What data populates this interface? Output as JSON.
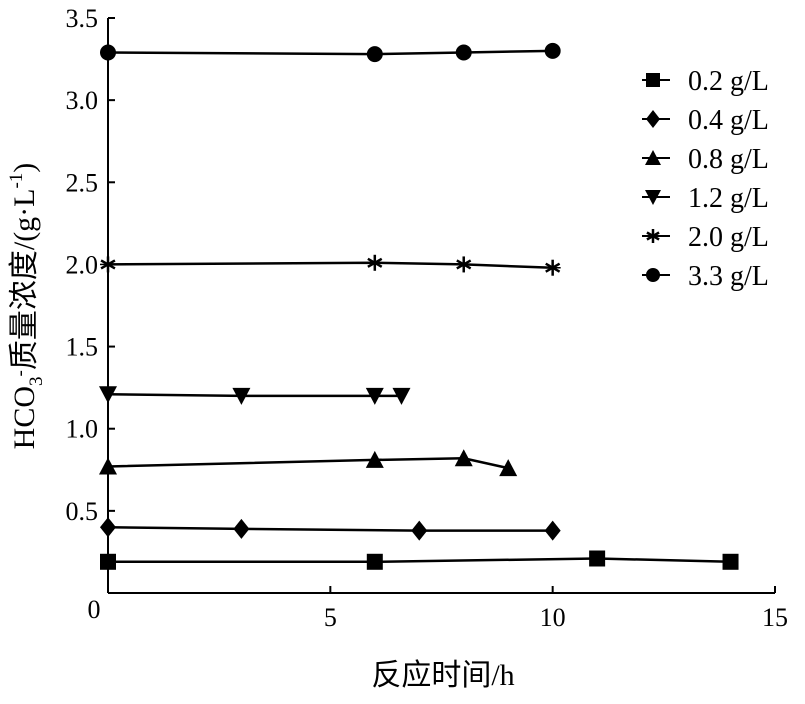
{
  "chart_data": {
    "type": "line",
    "xlabel": "反应时间/h",
    "ylabel": {
      "prefix": "HCO",
      "sub": "3",
      "sup": "-",
      "main": "质量浓度/(g·L",
      "unit_sup": "-1",
      "suffix": ")"
    },
    "xlim": [
      0,
      15
    ],
    "ylim": [
      0,
      3.5
    ],
    "x_ticks": [
      0,
      5,
      10,
      15
    ],
    "x_tick_labels": [
      "0",
      "5",
      "10",
      "15"
    ],
    "y_ticks": [
      0.5,
      1.0,
      1.5,
      2.0,
      2.5,
      3.0,
      3.5
    ],
    "y_tick_labels": [
      "0.5",
      "1.0",
      "1.5",
      "2.0",
      "2.5",
      "3.0",
      "3.5"
    ],
    "origin_label": "0",
    "grid": false,
    "legend_position": "top-right",
    "series": [
      {
        "name": "0.2 g/L",
        "marker": "square",
        "x": [
          0,
          6,
          11,
          14
        ],
        "y": [
          0.19,
          0.19,
          0.21,
          0.19
        ]
      },
      {
        "name": "0.4 g/L",
        "marker": "diamond",
        "x": [
          0,
          3,
          7,
          10
        ],
        "y": [
          0.4,
          0.39,
          0.38,
          0.38
        ]
      },
      {
        "name": "0.8 g/L",
        "marker": "triangle-up",
        "x": [
          0,
          6,
          8,
          9
        ],
        "y": [
          0.77,
          0.81,
          0.82,
          0.76
        ]
      },
      {
        "name": "1.2 g/L",
        "marker": "triangle-down",
        "x": [
          0,
          3,
          6,
          6.6
        ],
        "y": [
          1.21,
          1.2,
          1.2,
          1.2
        ]
      },
      {
        "name": "2.0 g/L",
        "marker": "star",
        "x": [
          0,
          6,
          8,
          10
        ],
        "y": [
          2.0,
          2.01,
          2.0,
          1.98
        ]
      },
      {
        "name": "3.3 g/L",
        "marker": "circle",
        "x": [
          0,
          6,
          8,
          10
        ],
        "y": [
          3.29,
          3.28,
          3.29,
          3.3
        ]
      }
    ]
  }
}
